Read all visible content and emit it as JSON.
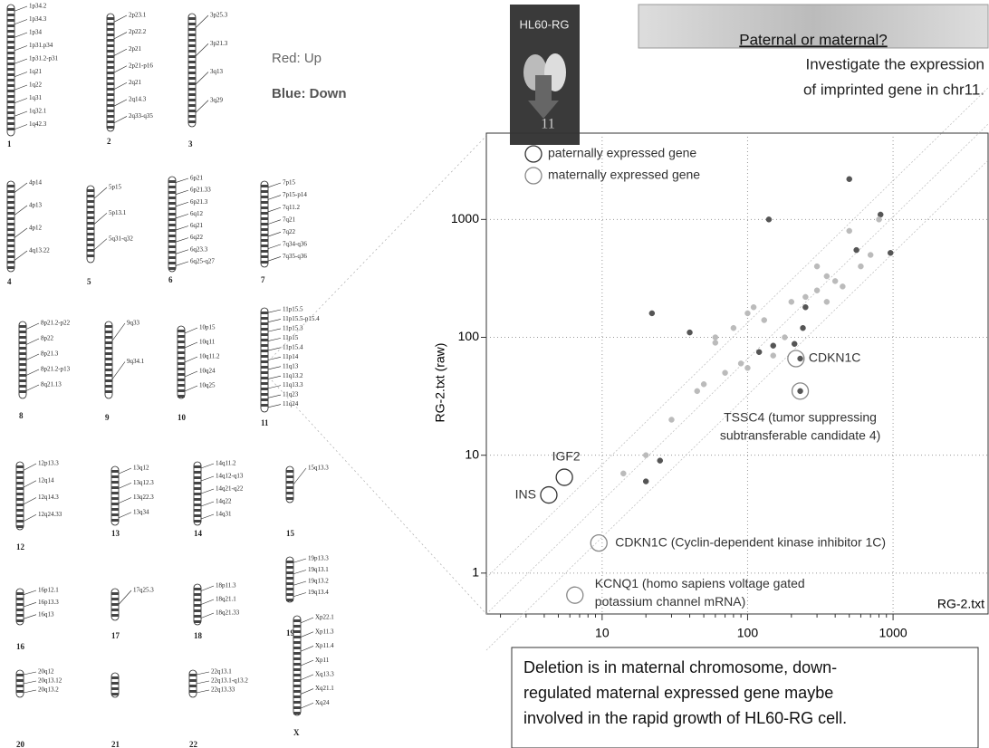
{
  "karyotype": {
    "notes": [
      "Red: Up",
      "Blue: Down"
    ],
    "chromosomes": [
      {
        "label": "1",
        "bands": [
          "1p34.2",
          "1p34.3",
          "1p34",
          "1p31.p34",
          "1p31.2-p31",
          "1q21",
          "1q22",
          "1q31",
          "1q32.1",
          "1q42.3"
        ]
      },
      {
        "label": "2",
        "bands": [
          "2p23.1",
          "2p22.2",
          "2p21",
          "2p21-p16",
          "2q21",
          "2q14.3",
          "2q33-q35"
        ]
      },
      {
        "label": "3",
        "bands": [
          "3p25.3",
          "3p21.3",
          "3q13",
          "3q29"
        ]
      },
      {
        "label": "4",
        "bands": [
          "4p14",
          "4p13",
          "4p12",
          "4q13.22"
        ]
      },
      {
        "label": "5",
        "bands": [
          "5p15",
          "5p13.1",
          "5q31-q32"
        ]
      },
      {
        "label": "6",
        "bands": [
          "6p21",
          "6p21.33",
          "6p21.3",
          "6q12",
          "6q21",
          "6q22",
          "6q23.3",
          "6q25-q27"
        ]
      },
      {
        "label": "7",
        "bands": [
          "7p15",
          "7p15-p14",
          "7q11.2",
          "7q21",
          "7q22",
          "7q34-q36",
          "7q35-q36"
        ]
      },
      {
        "label": "8",
        "bands": [
          "8p21.2-p22",
          "8p22",
          "8p21.3",
          "8p21.2-p13",
          "8q21.13"
        ]
      },
      {
        "label": "9",
        "bands": [
          "9q33",
          "9q34.1"
        ]
      },
      {
        "label": "10",
        "bands": [
          "10p15",
          "10q11",
          "10q11.2",
          "10q24",
          "10q25"
        ]
      },
      {
        "label": "11",
        "bands": [
          "11p15.5",
          "11p15.5-p15.4",
          "11p15.3",
          "11p15",
          "11p15.4",
          "11p14",
          "11q13",
          "11q13.2",
          "11q13.3",
          "11q23",
          "11q24"
        ]
      },
      {
        "label": "12",
        "bands": [
          "12p13.3",
          "12q14",
          "12q14.3",
          "12q24.33"
        ]
      },
      {
        "label": "13",
        "bands": [
          "13q12",
          "13q12.3",
          "13q22.3",
          "13q34"
        ]
      },
      {
        "label": "14",
        "bands": [
          "14q11.2",
          "14q12-q13",
          "14q21-q22",
          "14q22",
          "14q31"
        ]
      },
      {
        "label": "15",
        "bands": [
          "15q13.3"
        ]
      },
      {
        "label": "16",
        "bands": [
          "16p12.1",
          "16p13.3",
          "16q13"
        ]
      },
      {
        "label": "17",
        "bands": [
          "17q25.3"
        ]
      },
      {
        "label": "18",
        "bands": [
          "18p11.3",
          "18q21.1",
          "18q21.33"
        ]
      },
      {
        "label": "19",
        "bands": [
          "19p13.3",
          "19q13.1",
          "19q13.2",
          "19q13.4"
        ]
      },
      {
        "label": "20",
        "bands": [
          "20q12",
          "20q13.12",
          "20q13.2"
        ]
      },
      {
        "label": "21",
        "bands": []
      },
      {
        "label": "22",
        "bands": [
          "22q13.1",
          "22q13.1-q13.2",
          "22q13.33"
        ]
      },
      {
        "label": "X",
        "bands": [
          "Xp22.1",
          "Xp11.3",
          "Xp11.4",
          "Xp11",
          "Xq13.3",
          "Xq21.1",
          "Xq24"
        ]
      }
    ]
  },
  "thumbnail": {
    "title": "HL60-RG",
    "number": "11"
  },
  "banner": "Paternal or maternal?",
  "note": [
    "Investigate the expression",
    "of imprinted gene in chr11."
  ],
  "conclusion": [
    "Deletion is in maternal chromosome, down-",
    "regulated maternal expressed gene maybe",
    "involved in the rapid growth of HL60-RG cell."
  ],
  "chart_data": {
    "type": "scatter",
    "y_label": "RG-2.txt (raw)",
    "x_label": "RG-2.txt",
    "log_x": true,
    "log_y": true,
    "grid": true,
    "xlim": [
      1.6,
      4500
    ],
    "ylim": [
      0.45,
      5400
    ],
    "xticks": [
      10,
      100,
      1000
    ],
    "yticks": [
      1,
      10,
      100,
      1000
    ],
    "series": [
      {
        "name": "paternally expressed gene",
        "color": "#333333",
        "x": [
          5.5,
          4.3
        ],
        "values": [
          6.5,
          4.6
        ],
        "labels": [
          [
            "IGF2"
          ],
          [
            "INS"
          ]
        ]
      },
      {
        "name": "maternally expressed gene",
        "color": "#888888",
        "x": [
          215,
          230,
          9.5,
          6.5
        ],
        "values": [
          66,
          35,
          1.8,
          0.65
        ],
        "labels": [
          [
            "CDKN1C"
          ],
          [
            "TSSC4 (tumor suppressing",
            "subtransferable candidate 4)"
          ],
          [
            "CDKN1C (Cyclin-dependent kinase inhibitor 1C)"
          ],
          [
            "KCNQ1 (homo sapiens voltage gated",
            "potassium channel mRNA)"
          ]
        ]
      },
      {
        "color": "#555555",
        "x": [
          140,
          500,
          22,
          150,
          210,
          240,
          250,
          820,
          560,
          960,
          40,
          120,
          230,
          25,
          20,
          230
        ],
        "values": [
          1000,
          2200,
          160,
          85,
          88,
          120,
          180,
          1100,
          550,
          520,
          110,
          75,
          35,
          9,
          6,
          66
        ]
      },
      {
        "color": "#bbbbbb",
        "x": [
          60,
          80,
          100,
          110,
          130,
          200,
          300,
          350,
          400,
          450,
          600,
          700,
          50,
          70,
          90,
          100,
          150,
          180,
          60,
          45,
          30,
          20,
          14,
          300,
          500,
          250,
          350,
          800
        ],
        "values": [
          100,
          120,
          160,
          180,
          140,
          200,
          250,
          200,
          300,
          270,
          400,
          500,
          40,
          50,
          60,
          55,
          70,
          100,
          90,
          35,
          20,
          10,
          7,
          400,
          800,
          220,
          330,
          1000
        ]
      }
    ]
  }
}
